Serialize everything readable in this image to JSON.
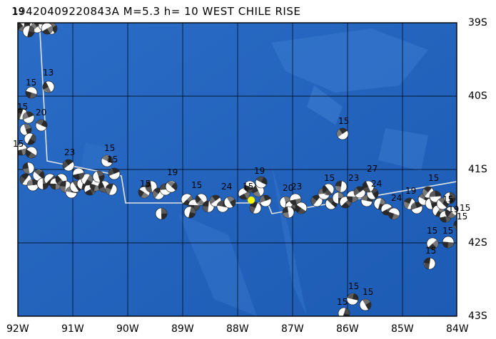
{
  "title": "19420409220843A M=5.3 h= 10 WEST CHILE RISE",
  "x_ticks": [
    "92W",
    "91W",
    "90W",
    "89W",
    "88W",
    "87W",
    "86W",
    "85W",
    "84W"
  ],
  "y_ticks": [
    "39S",
    "40S",
    "41S",
    "42S",
    "43S"
  ],
  "colors": {
    "ocean": "#1f5fb8",
    "ocean_deep": "#2768c4",
    "ocean_light": "#5a8fd3",
    "grid": "#000000",
    "plate_boundary": "#e0e0e0",
    "event": "#ffff00"
  },
  "event_labels": [
    {
      "t": "19"
    },
    {
      "t": "15"
    },
    {
      "t": "13"
    },
    {
      "t": "15"
    },
    {
      "t": "20"
    },
    {
      "t": "15"
    },
    {
      "t": "23"
    },
    {
      "t": "15"
    },
    {
      "t": "15"
    },
    {
      "t": "19"
    },
    {
      "t": "15"
    },
    {
      "t": "15"
    },
    {
      "t": "24"
    },
    {
      "t": "19"
    },
    {
      "t": "15"
    },
    {
      "t": "20"
    },
    {
      "t": "23"
    },
    {
      "t": "15"
    },
    {
      "t": "15"
    },
    {
      "t": "23"
    },
    {
      "t": "27"
    },
    {
      "t": "24"
    },
    {
      "t": "24"
    },
    {
      "t": "19"
    },
    {
      "t": "15"
    },
    {
      "t": "15"
    },
    {
      "t": "19"
    },
    {
      "t": "15"
    },
    {
      "t": "15"
    },
    {
      "t": "15"
    },
    {
      "t": "15"
    },
    {
      "t": "15"
    },
    {
      "t": "15"
    },
    {
      "t": "15"
    },
    {
      "t": "15"
    }
  ]
}
